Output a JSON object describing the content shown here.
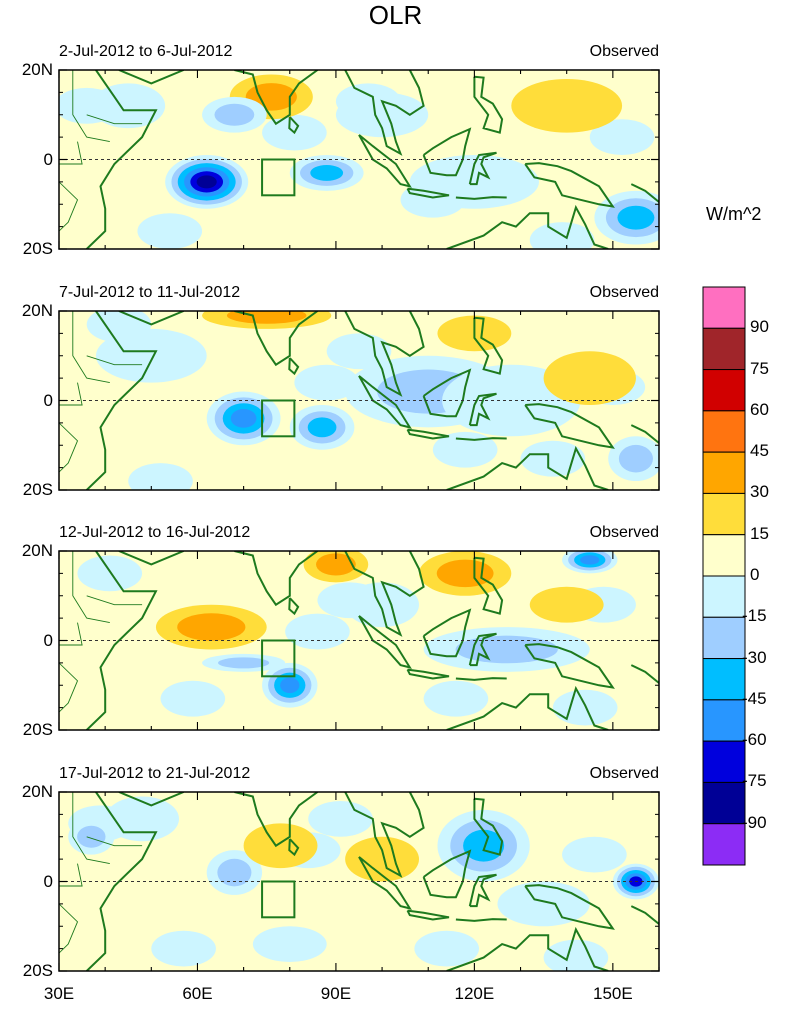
{
  "chart_data": {
    "type": "heatmap",
    "title": "OLR",
    "variable_label": "OLR",
    "units": "W/m^2",
    "x_ticks": [
      "30E",
      "60E",
      "90E",
      "120E",
      "150E"
    ],
    "x_tick_values": [
      30,
      60,
      90,
      120,
      150
    ],
    "xlim": [
      30,
      160
    ],
    "y_ticks": [
      "20N",
      "0",
      "20S"
    ],
    "y_tick_values": [
      20,
      0,
      -20
    ],
    "ylim": [
      -20,
      20
    ],
    "box_region": {
      "lon": [
        74,
        81
      ],
      "lat": [
        -8,
        0
      ]
    },
    "colorbar": {
      "levels": [
        "90",
        "75",
        "60",
        "45",
        "30",
        "15",
        "0",
        "-15",
        "-30",
        "-45",
        "-60",
        "-75",
        "-90"
      ],
      "colors": [
        "#FF6FC0",
        "#A0252A",
        "#D10000",
        "#FF7410",
        "#FFA600",
        "#FFDD3A",
        "#FFFFCC",
        "#CCF5FF",
        "#9FCEFF",
        "#00BEFF",
        "#2896FF",
        "#0000DD",
        "#000096",
        "#8C2CF5"
      ]
    },
    "panels": [
      {
        "period": "2-Jul-2012 to 6-Jul-2012",
        "label": "Observed",
        "anomalies": [
          {
            "lon": 62,
            "lat": -5,
            "value": -95,
            "rx": 9,
            "ry": 6
          },
          {
            "lon": 88,
            "lat": -3,
            "value": -55,
            "rx": 8,
            "ry": 4
          },
          {
            "lon": 76,
            "lat": 14,
            "value": 40,
            "rx": 9,
            "ry": 5
          },
          {
            "lon": 68,
            "lat": 10,
            "value": -35,
            "rx": 7,
            "ry": 4
          },
          {
            "lon": 155,
            "lat": -13,
            "value": -50,
            "rx": 9,
            "ry": 6
          },
          {
            "lon": 120,
            "lat": -5,
            "value": -20,
            "rx": 14,
            "ry": 6
          },
          {
            "lon": 100,
            "lat": 10,
            "value": -20,
            "rx": 10,
            "ry": 5
          },
          {
            "lon": 45,
            "lat": 12,
            "value": -20,
            "rx": 8,
            "ry": 5
          },
          {
            "lon": 140,
            "lat": 12,
            "value": 10,
            "rx": 12,
            "ry": 6
          }
        ]
      },
      {
        "period": "7-Jul-2012 to 11-Jul-2012",
        "label": "Observed",
        "anomalies": [
          {
            "lon": 70,
            "lat": -4,
            "value": -70,
            "rx": 8,
            "ry": 6
          },
          {
            "lon": 87,
            "lat": -6,
            "value": -55,
            "rx": 7,
            "ry": 5
          },
          {
            "lon": 75,
            "lat": 19,
            "value": 30,
            "rx": 14,
            "ry": 3
          },
          {
            "lon": 110,
            "lat": 2,
            "value": -30,
            "rx": 18,
            "ry": 8
          },
          {
            "lon": 128,
            "lat": 0,
            "value": -20,
            "rx": 15,
            "ry": 8
          },
          {
            "lon": 120,
            "lat": 15,
            "value": 20,
            "rx": 8,
            "ry": 4
          },
          {
            "lon": 145,
            "lat": 5,
            "value": 20,
            "rx": 10,
            "ry": 6
          },
          {
            "lon": 155,
            "lat": -13,
            "value": -40,
            "rx": 6,
            "ry": 5
          },
          {
            "lon": 50,
            "lat": 10,
            "value": -20,
            "rx": 12,
            "ry": 6
          }
        ]
      },
      {
        "period": "12-Jul-2012 to 16-Jul-2012",
        "label": "Observed",
        "anomalies": [
          {
            "lon": 80,
            "lat": -10,
            "value": -70,
            "rx": 6,
            "ry": 5
          },
          {
            "lon": 70,
            "lat": -5,
            "value": -40,
            "rx": 9,
            "ry": 2
          },
          {
            "lon": 63,
            "lat": 3,
            "value": 40,
            "rx": 12,
            "ry": 5
          },
          {
            "lon": 90,
            "lat": 17,
            "value": 40,
            "rx": 7,
            "ry": 4
          },
          {
            "lon": 118,
            "lat": 15,
            "value": 35,
            "rx": 10,
            "ry": 5
          },
          {
            "lon": 145,
            "lat": 18,
            "value": -65,
            "rx": 6,
            "ry": 3
          },
          {
            "lon": 127,
            "lat": -2,
            "value": -40,
            "rx": 18,
            "ry": 5
          },
          {
            "lon": 100,
            "lat": 8,
            "value": -20,
            "rx": 8,
            "ry": 5
          },
          {
            "lon": 140,
            "lat": 8,
            "value": 15,
            "rx": 8,
            "ry": 4
          }
        ]
      },
      {
        "period": "17-Jul-2012 to 21-Jul-2012",
        "label": "Observed",
        "anomalies": [
          {
            "lon": 155,
            "lat": 0,
            "value": -75,
            "rx": 5,
            "ry": 4
          },
          {
            "lon": 122,
            "lat": 8,
            "value": -45,
            "rx": 10,
            "ry": 8
          },
          {
            "lon": 68,
            "lat": 2,
            "value": -35,
            "rx": 6,
            "ry": 5
          },
          {
            "lon": 78,
            "lat": 8,
            "value": 25,
            "rx": 8,
            "ry": 5
          },
          {
            "lon": 100,
            "lat": 5,
            "value": 20,
            "rx": 8,
            "ry": 5
          },
          {
            "lon": 37,
            "lat": 10,
            "value": -35,
            "rx": 5,
            "ry": 4
          },
          {
            "lon": 135,
            "lat": -5,
            "value": -25,
            "rx": 10,
            "ry": 5
          },
          {
            "lon": 80,
            "lat": -14,
            "value": -20,
            "rx": 8,
            "ry": 4
          },
          {
            "lon": 48,
            "lat": 14,
            "value": -20,
            "rx": 8,
            "ry": 5
          }
        ]
      }
    ]
  }
}
